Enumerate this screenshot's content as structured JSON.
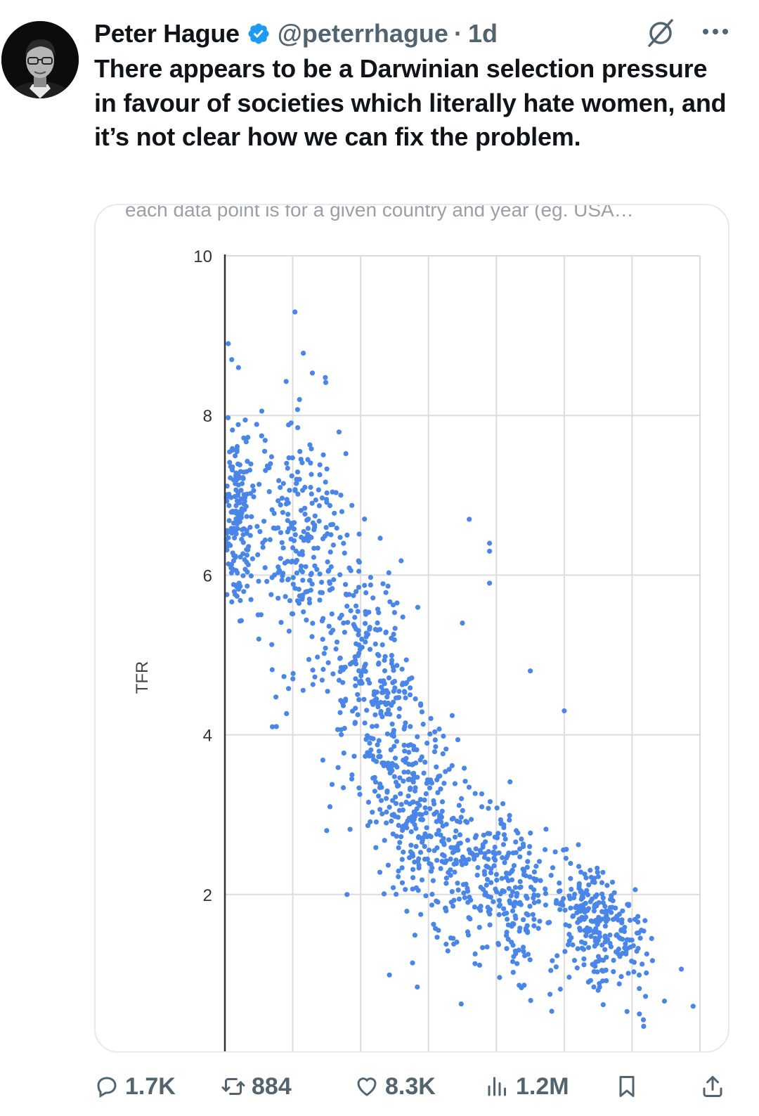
{
  "tweet": {
    "author_name": "Peter Hague",
    "handle": "@peterrhague",
    "separator": "·",
    "time": "1d",
    "verified": true,
    "text": "There appears to be a Darwinian selection pressure in favour of societies which literally hate women, and it’s not clear how we can fix the problem."
  },
  "actions": {
    "replies": "1.7K",
    "reposts": "884",
    "likes": "8.3K",
    "views": "1.2M"
  },
  "colors": {
    "verified": "#1d9bf0",
    "muted": "#536471",
    "point": "#4a86e8"
  },
  "chart_data": {
    "type": "scatter",
    "title": "each data point is for a given country and year (eg. USA…",
    "ylabel": "TFR",
    "xlabel": "",
    "ylim": [
      0,
      10
    ],
    "xlim": [
      0,
      7
    ],
    "yticks": [
      2,
      4,
      6,
      8,
      10
    ],
    "grid": true,
    "series_name": "country-year",
    "approx_point_count": 1500,
    "trend": "negative; TFR falls from about 6.5 at low x to about 1.6 at high x",
    "clusters": [
      {
        "x_center": 0.2,
        "x_spread": 0.2,
        "y_center": 6.7,
        "y_spread": 0.55,
        "n": 160
      },
      {
        "x_center": 1.1,
        "x_spread": 0.55,
        "y_center": 6.4,
        "y_spread": 0.75,
        "n": 260
      },
      {
        "x_center": 2.2,
        "x_spread": 0.6,
        "y_center": 4.6,
        "y_spread": 0.75,
        "n": 260
      },
      {
        "x_center": 2.9,
        "x_spread": 0.7,
        "y_center": 2.9,
        "y_spread": 0.65,
        "n": 300
      },
      {
        "x_center": 4.1,
        "x_spread": 0.7,
        "y_center": 2.1,
        "y_spread": 0.55,
        "n": 260
      },
      {
        "x_center": 5.5,
        "x_spread": 0.6,
        "y_center": 1.6,
        "y_spread": 0.35,
        "n": 260
      }
    ],
    "outliers": [
      {
        "x": 0.05,
        "y": 8.9
      },
      {
        "x": 0.1,
        "y": 8.7
      },
      {
        "x": 0.2,
        "y": 8.6
      },
      {
        "x": 1.1,
        "y": 8.2
      },
      {
        "x": 3.6,
        "y": 6.7
      },
      {
        "x": 3.9,
        "y": 6.4
      },
      {
        "x": 3.9,
        "y": 6.3
      },
      {
        "x": 3.9,
        "y": 5.9
      },
      {
        "x": 3.5,
        "y": 5.4
      },
      {
        "x": 4.5,
        "y": 4.8
      },
      {
        "x": 5.0,
        "y": 4.3
      },
      {
        "x": 0.5,
        "y": 5.2
      },
      {
        "x": 0.7,
        "y": 4.1
      },
      {
        "x": 1.5,
        "y": 2.8
      },
      {
        "x": 1.8,
        "y": 2.0
      },
      {
        "x": 6.9,
        "y": 0.6
      },
      {
        "x": 5.5,
        "y": 0.8
      }
    ]
  }
}
